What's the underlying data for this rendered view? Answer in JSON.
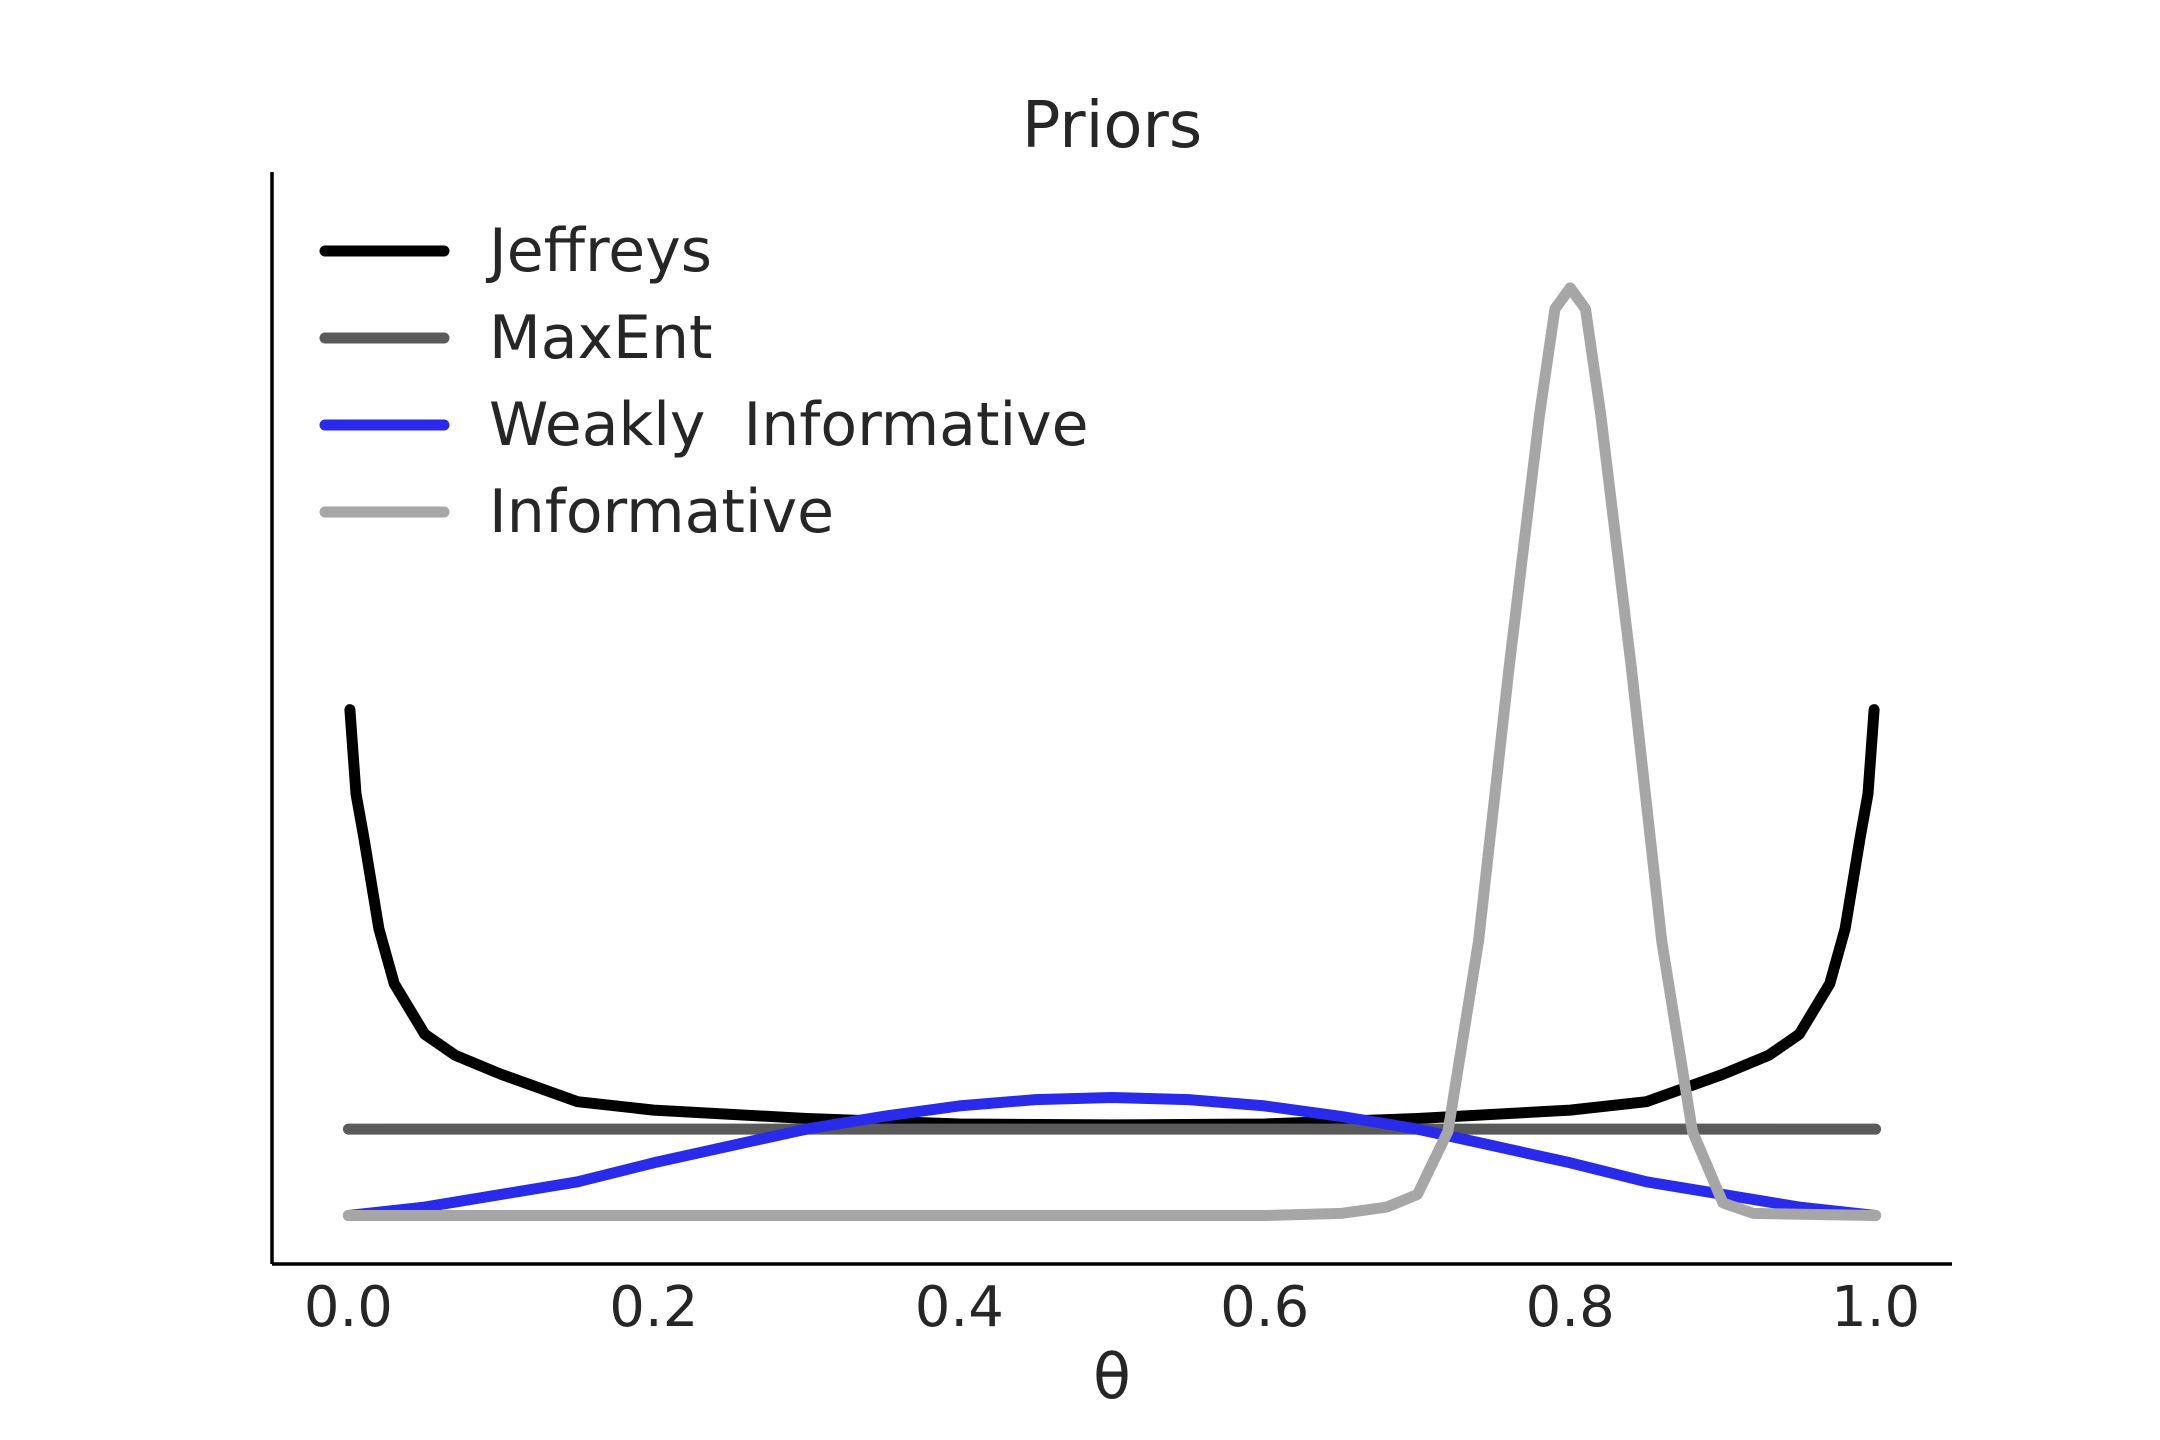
{
  "chart_data": {
    "type": "line",
    "title": "Priors",
    "xlabel": "θ",
    "ylabel": "",
    "xlim": [
      -0.05,
      1.05
    ],
    "ylim": [
      -0.23,
      4.95
    ],
    "x_ticks": [
      "0.0",
      "0.2",
      "0.4",
      "0.6",
      "0.8",
      "1.0"
    ],
    "y_ticks_visible": false,
    "grid": false,
    "legend_position": "top-left",
    "series": [
      {
        "name": "Jeffreys",
        "color": "#000000",
        "distribution": "Beta(0.5, 0.5)",
        "x": [
          0.001,
          0.005,
          0.01,
          0.02,
          0.03,
          0.05,
          0.07,
          0.1,
          0.15,
          0.2,
          0.3,
          0.4,
          0.5,
          0.6,
          0.7,
          0.8,
          0.85,
          0.9,
          0.93,
          0.95,
          0.97,
          0.98,
          0.99,
          0.995,
          0.999
        ],
        "y": [
          2.4,
          2.0,
          1.8,
          1.36,
          1.1,
          0.86,
          0.76,
          0.67,
          0.54,
          0.5,
          0.46,
          0.434,
          0.43,
          0.434,
          0.46,
          0.5,
          0.54,
          0.67,
          0.76,
          0.86,
          1.1,
          1.36,
          1.8,
          2.0,
          2.4
        ]
      },
      {
        "name": "MaxEnt",
        "color": "#5a5a5a",
        "distribution": "Beta(1, 1)",
        "x": [
          0.0,
          1.0
        ],
        "y": [
          0.41,
          0.41
        ]
      },
      {
        "name": "Weakly  Informative",
        "color": "#2a2aeb",
        "distribution": "Beta(2, 2)",
        "x": [
          0.0,
          0.05,
          0.1,
          0.15,
          0.2,
          0.25,
          0.3,
          0.35,
          0.4,
          0.45,
          0.5,
          0.55,
          0.6,
          0.65,
          0.7,
          0.75,
          0.8,
          0.85,
          0.9,
          0.95,
          1.0
        ],
        "y": [
          0.0,
          0.04,
          0.1,
          0.16,
          0.25,
          0.33,
          0.41,
          0.47,
          0.52,
          0.55,
          0.56,
          0.55,
          0.52,
          0.47,
          0.41,
          0.33,
          0.25,
          0.16,
          0.1,
          0.04,
          0.0
        ]
      },
      {
        "name": "Informative",
        "color": "#a6a6a6",
        "distribution": "Normal-like peak at 0.8",
        "x": [
          0.0,
          0.6,
          0.65,
          0.68,
          0.7,
          0.72,
          0.74,
          0.76,
          0.78,
          0.79,
          0.8,
          0.81,
          0.82,
          0.84,
          0.86,
          0.88,
          0.9,
          0.92,
          1.0
        ],
        "y": [
          0.0,
          0.0,
          0.01,
          0.04,
          0.1,
          0.4,
          1.3,
          2.6,
          3.8,
          4.3,
          4.4,
          4.3,
          3.8,
          2.6,
          1.3,
          0.4,
          0.06,
          0.01,
          0.0
        ]
      }
    ]
  }
}
